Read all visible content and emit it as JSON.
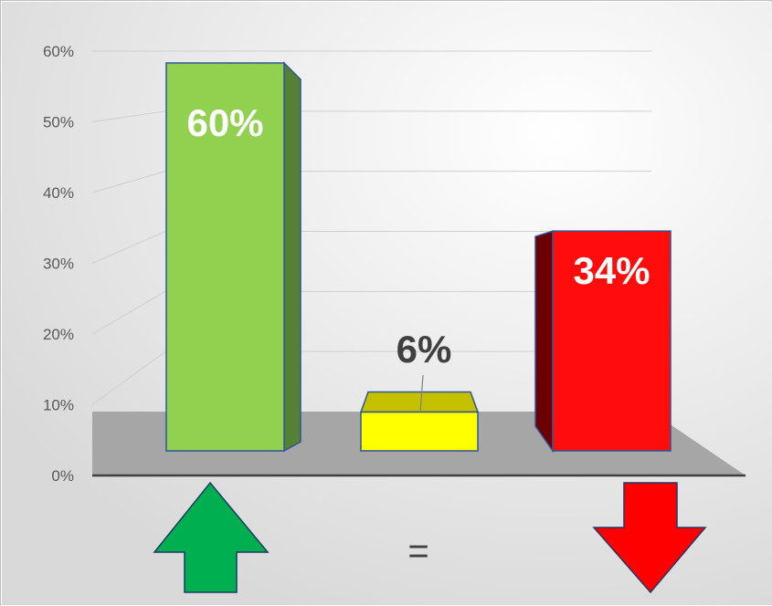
{
  "chart_data": {
    "type": "bar",
    "categories": [
      "",
      "",
      ""
    ],
    "values": [
      60,
      6,
      34
    ],
    "data_labels": [
      "60%",
      "6%",
      "34%"
    ],
    "y_ticks": [
      "0%",
      "10%",
      "20%",
      "30%",
      "40%",
      "50%",
      "60%"
    ],
    "ylim": [
      0,
      60
    ],
    "grid": true,
    "legend": "none",
    "colors": {
      "up_front": "#92d050",
      "up_side": "#548235",
      "neutral_front": "#ffff00",
      "neutral_top": "#c6c100",
      "down_front": "#ff0d0d",
      "down_side": "#6b0000",
      "up_arrow": "#00b050",
      "down_arrow": "#ff0000",
      "floor": "#a6a6a6"
    }
  },
  "indicators": {
    "up_icon": "up-arrow-icon",
    "equal_symbol": "=",
    "down_icon": "down-arrow-icon"
  }
}
